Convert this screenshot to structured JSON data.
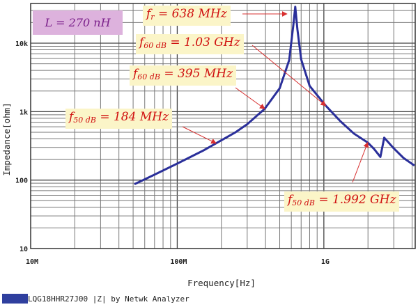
{
  "chart_data": {
    "type": "line",
    "xlabel": "Frequency[Hz]",
    "ylabel": "Impedance[ohm]",
    "x_scale": "log",
    "y_scale": "log",
    "xlim": [
      10000000,
      4200000000
    ],
    "ylim": [
      10,
      38000
    ],
    "grid": true,
    "x_ticks": [
      {
        "value": 10000000,
        "label": "10M"
      },
      {
        "value": 100000000,
        "label": "100M"
      },
      {
        "value": 1000000000,
        "label": "1G"
      }
    ],
    "y_ticks": [
      {
        "value": 10,
        "label": "10"
      },
      {
        "value": 100,
        "label": "100"
      },
      {
        "value": 1000,
        "label": "1k"
      },
      {
        "value": 10000,
        "label": "10k"
      }
    ],
    "legend": {
      "placement": "bottom-left",
      "label": "LQG18HHR27J00 |Z| by Netwk Analyzer",
      "color": "#2f3f9e"
    },
    "series": [
      {
        "name": "LQG18HHR27J00 |Z| by Netwk Analyzer",
        "color": "#2a2f9a",
        "x": [
          51000000.0,
          70000000.0,
          100000000.0,
          150000000.0,
          184000000.0,
          250000000.0,
          300000000.0,
          395000000.0,
          500000000.0,
          580000000.0,
          620000000.0,
          638000000.0,
          660000000.0,
          700000000.0,
          800000000.0,
          1030000000.0,
          1300000000.0,
          1600000000.0,
          1992000000.0,
          2200000000.0,
          2430000000.0,
          2580000000.0,
          3000000000.0,
          3500000000.0,
          4150000000.0
        ],
        "y": [
          87,
          120,
          174,
          269,
          345,
          501,
          653,
          1100,
          2200,
          5650,
          18900,
          34000,
          15900,
          5800,
          2370,
          1220,
          720,
          480,
          354,
          285,
          218,
          416,
          290,
          210,
          163
        ]
      }
    ],
    "annotations": [
      {
        "var": "f",
        "sub": "r",
        "text": " = 638 MHz",
        "at_x": 638000000.0
      },
      {
        "var": "f",
        "sub": "60 dB",
        "text": " = 1.03 GHz",
        "at_x": 1030000000.0
      },
      {
        "var": "f",
        "sub": "60 dB",
        "text": " = 395 MHz",
        "at_x": 395000000.0
      },
      {
        "var": "f",
        "sub": "50 dB",
        "text": " = 184 MHz",
        "at_x": 184000000.0
      },
      {
        "var": "f",
        "sub": "50 dB",
        "text": " = 1.992 GHz",
        "at_x": 1992000000.0
      }
    ],
    "inductance_label": "L = 270 nH",
    "colors": {
      "annotation_bg": "#fbf5c8",
      "annotation_text": "#d01010",
      "arrow": "#d83030",
      "inductance_bg": "#ddb2dd",
      "inductance_text": "#7a1f8a"
    }
  }
}
